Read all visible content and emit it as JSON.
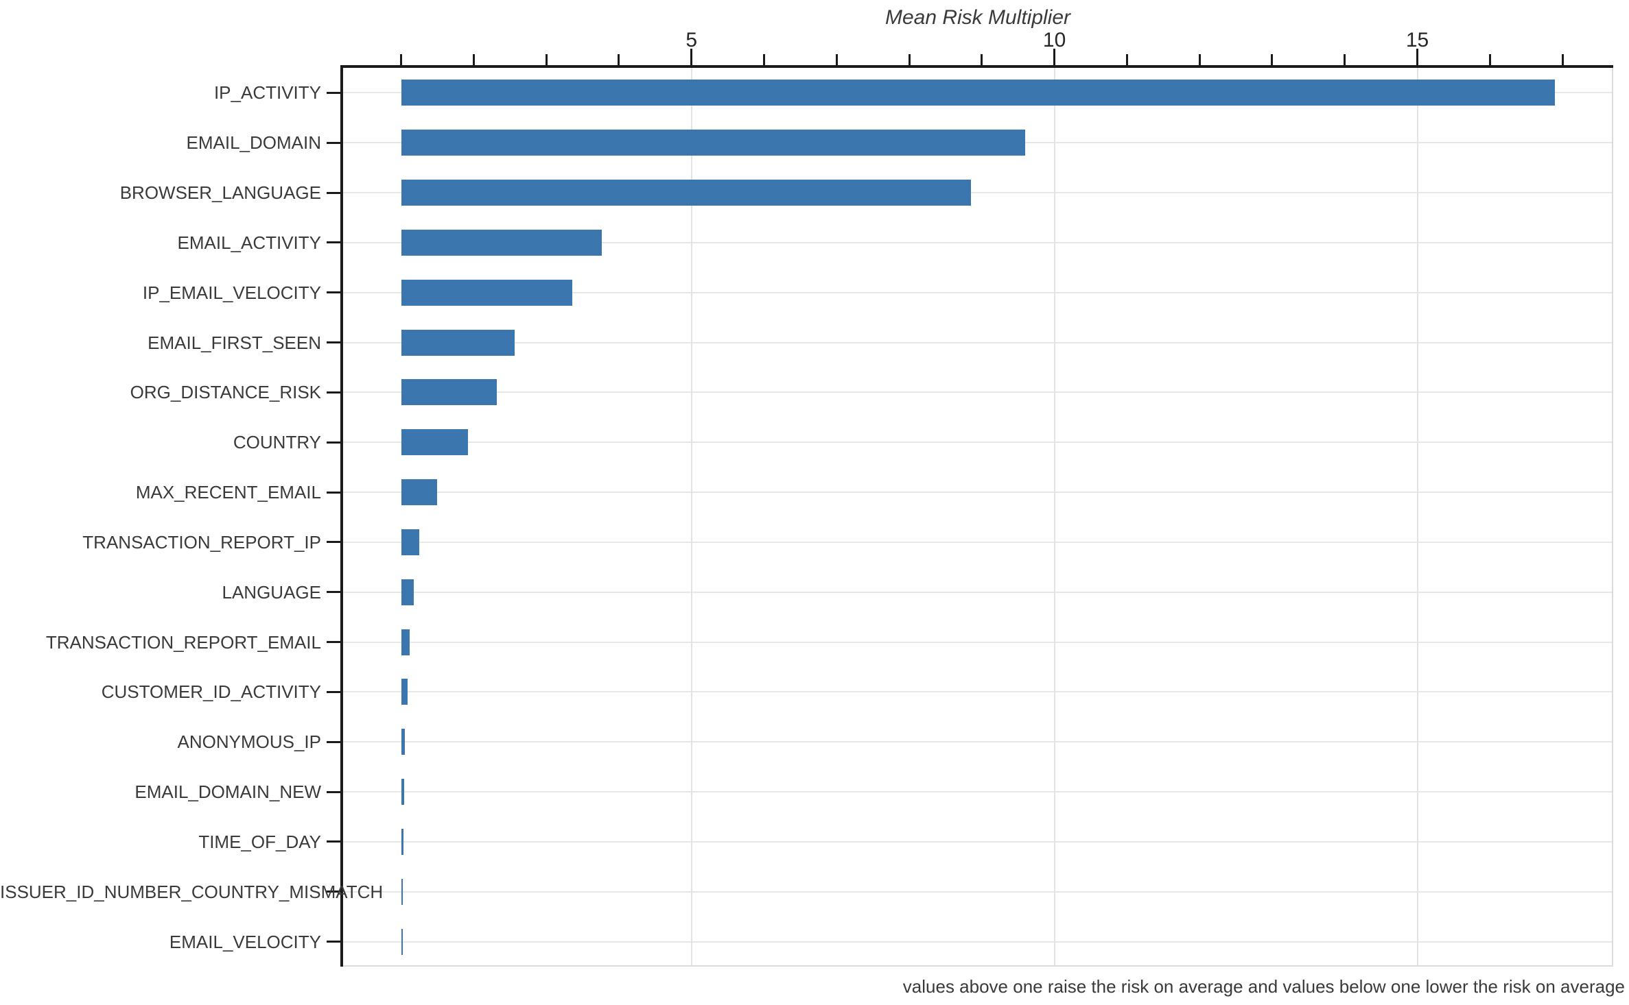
{
  "chart_data": {
    "type": "bar",
    "orientation": "horizontal",
    "title": "Mean Risk Multiplier",
    "caption": "values above one raise the risk on average and values below one lower the risk on average",
    "categories": [
      "IP_ACTIVITY",
      "EMAIL_DOMAIN",
      "BROWSER_LANGUAGE",
      "EMAIL_ACTIVITY",
      "IP_EMAIL_VELOCITY",
      "EMAIL_FIRST_SEEN",
      "ORG_DISTANCE_RISK",
      "COUNTRY",
      "MAX_RECENT_EMAIL",
      "TRANSACTION_REPORT_IP",
      "LANGUAGE",
      "TRANSACTION_REPORT_EMAIL",
      "CUSTOMER_ID_ACTIVITY",
      "ANONYMOUS_IP",
      "EMAIL_DOMAIN_NEW",
      "TIME_OF_DAY",
      "ISSUER_ID_NUMBER_COUNTRY_MISMATCH",
      "EMAIL_VELOCITY"
    ],
    "values": [
      16.9,
      9.6,
      8.85,
      3.76,
      3.36,
      2.56,
      2.32,
      1.92,
      1.5,
      1.25,
      1.17,
      1.12,
      1.09,
      1.05,
      1.04,
      1.03,
      1.025,
      1.015
    ],
    "bar_base": 1,
    "xlabel": "",
    "ylabel": "",
    "xlim": [
      0.2,
      17.68
    ],
    "x_major_ticks": [
      5,
      10,
      15
    ],
    "x_minor_ticks": [
      1,
      2,
      3,
      4,
      5,
      6,
      7,
      8,
      9,
      10,
      11,
      12,
      13,
      14,
      15,
      16,
      17
    ],
    "grid": "on",
    "legend_position": "none",
    "colors": {
      "bar": "#3c76af",
      "spine_dark": "#1a1a1a",
      "spine_light": "#dcdcdc",
      "grid_h": "#e7e7e7",
      "grid_v": "#e3e3e3",
      "text": "#3a3a3a",
      "tick_text": "#262626"
    }
  }
}
